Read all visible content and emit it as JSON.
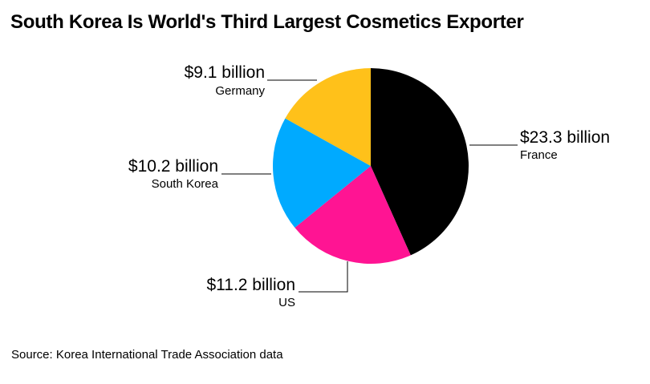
{
  "title": "South Korea Is World's Third Largest Cosmetics Exporter",
  "source": "Source: Korea International Trade Association data",
  "chart_data": {
    "type": "pie",
    "title": "South Korea Is World's Third Largest Cosmetics Exporter",
    "unit": "billion USD",
    "slices": [
      {
        "name": "France",
        "value": 23.3,
        "label": "$23.3 billion",
        "color": "#000000"
      },
      {
        "name": "US",
        "value": 11.2,
        "label": "$11.2 billion",
        "color": "#ff1493"
      },
      {
        "name": "South Korea",
        "value": 10.2,
        "label": "$10.2 billion",
        "color": "#00aaff"
      },
      {
        "name": "Germany",
        "value": 9.1,
        "label": "$9.1 billion",
        "color": "#ffc11a"
      }
    ],
    "start": "12 o'clock",
    "direction": "clockwise"
  }
}
